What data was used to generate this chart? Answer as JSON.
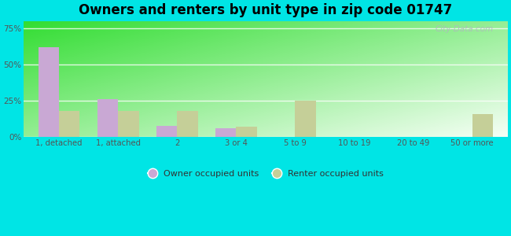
{
  "title": "Owners and renters by unit type in zip code 01747",
  "categories": [
    "1, detached",
    "1, attached",
    "2",
    "3 or 4",
    "5 to 9",
    "10 to 19",
    "20 to 49",
    "50 or more"
  ],
  "owner_values": [
    62,
    26,
    8,
    6,
    0,
    0,
    0,
    0
  ],
  "renter_values": [
    18,
    18,
    18,
    7,
    25,
    0,
    0,
    16
  ],
  "owner_color": "#c9a8d4",
  "renter_color": "#c5cf98",
  "background_color": "#00e5e5",
  "title_fontsize": 12,
  "watermark": "City-Data.com",
  "ylim": [
    0,
    80
  ],
  "yticks": [
    0,
    25,
    50,
    75
  ],
  "ytick_labels": [
    "0%",
    "25%",
    "50%",
    "75%"
  ],
  "legend_owner": "Owner occupied units",
  "legend_renter": "Renter occupied units",
  "bar_width": 0.35,
  "grad_top_left": "#b8ddb8",
  "grad_bottom_right": "#f0fff0"
}
